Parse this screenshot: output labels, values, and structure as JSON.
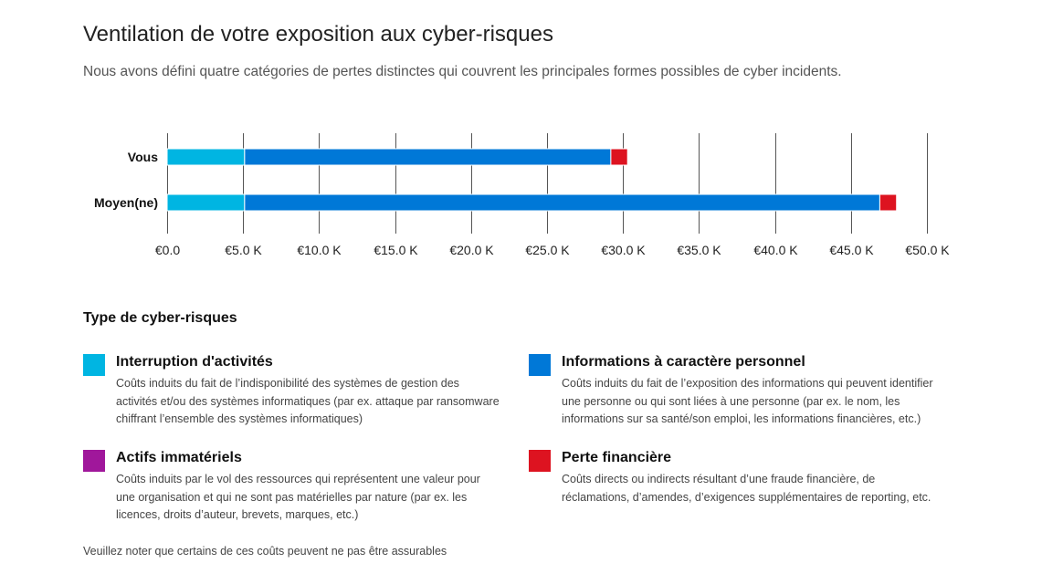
{
  "header": {
    "title": "Ventilation de votre exposition aux cyber-risques",
    "subtitle": "Nous avons défini quatre catégories de pertes distinctes qui couvrent les principales formes possibles de cyber incidents."
  },
  "chart_data": {
    "type": "bar",
    "orientation": "horizontal",
    "stacked": true,
    "categories": [
      "Vous",
      "Moyen(ne)"
    ],
    "series": [
      {
        "name": "Interruption d'activités",
        "color": "#00b5e2",
        "values": [
          5.1,
          5.1
        ]
      },
      {
        "name": "Informations à caractère personnel",
        "color": "#0078d7",
        "values": [
          24.1,
          41.8
        ]
      },
      {
        "name": "Actifs immatériels",
        "color": "#a0179b",
        "values": [
          0,
          0
        ]
      },
      {
        "name": "Perte financière",
        "color": "#dd1320",
        "values": [
          1.1,
          1.1
        ]
      }
    ],
    "xlim": [
      0,
      50
    ],
    "xticks": [
      0,
      5,
      10,
      15,
      20,
      25,
      30,
      35,
      40,
      45,
      50
    ],
    "xtick_labels": [
      "€0.0",
      "€5.0 K",
      "€10.0 K",
      "€15.0 K",
      "€20.0 K",
      "€25.0 K",
      "€30.0 K",
      "€35.0 K",
      "€40.0 K",
      "€45.0 K",
      "€50.0 K"
    ],
    "grid": "vertical",
    "legend_placement": "below"
  },
  "legend": {
    "title": "Type de cyber-risques",
    "items": [
      {
        "name": "Interruption d'activités",
        "color": "#00b5e2",
        "description": "Coûts induits du fait de l’indisponibilité des systèmes de gestion des activités et/ou des systèmes informatiques (par ex. attaque par ransomware chiffrant l’ensemble des systèmes informatiques)"
      },
      {
        "name": "Informations à caractère personnel",
        "color": "#0078d7",
        "description": "Coûts induits du fait de l’exposition des informations qui peuvent identifier une personne ou qui sont liées à une personne (par ex. le nom, les informations sur sa santé/son emploi, les informations financières, etc.)"
      },
      {
        "name": "Actifs immatériels",
        "color": "#a0179b",
        "description": "Coûts induits par le vol des ressources qui représentent une valeur pour une organisation et qui ne sont pas matérielles par nature (par ex. les licences, droits d’auteur, brevets, marques, etc.)"
      },
      {
        "name": "Perte financière",
        "color": "#dd1320",
        "description": "Coûts directs ou indirects résultant d’une fraude financière, de réclamations, d’amendes, d’exigences supplémentaires de reporting, etc."
      }
    ]
  },
  "footnote": "Veuillez noter que certains de ces coûts peuvent ne pas être assurables"
}
